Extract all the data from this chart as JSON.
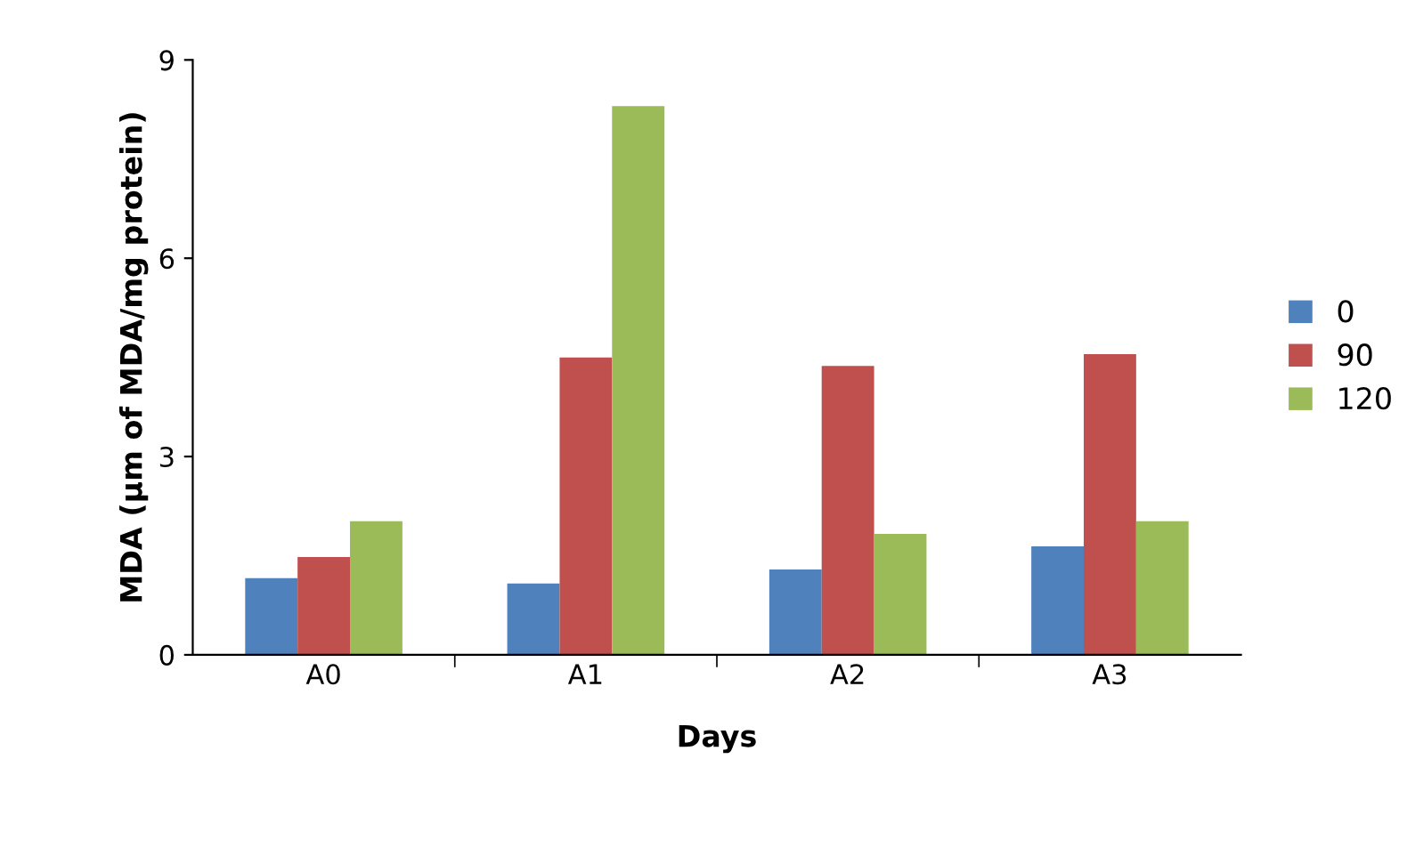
{
  "chart_data": {
    "type": "bar",
    "xlabel": "Days",
    "ylabel": "MDA (µm of MDA/mg protein)",
    "categories": [
      "A0",
      "A1",
      "A2",
      "A3"
    ],
    "series": [
      {
        "name": "0",
        "color": "#4f81bd",
        "values": [
          1.16,
          1.08,
          1.29,
          1.64
        ]
      },
      {
        "name": "90",
        "color": "#c0504d",
        "values": [
          1.48,
          4.5,
          4.37,
          4.55
        ]
      },
      {
        "name": "120",
        "color": "#9bbb59",
        "values": [
          2.02,
          8.3,
          1.83,
          2.02
        ]
      }
    ],
    "ylim": [
      0,
      9
    ],
    "yticks": [
      0,
      3,
      6,
      9
    ],
    "grid": false,
    "legend": "right"
  }
}
